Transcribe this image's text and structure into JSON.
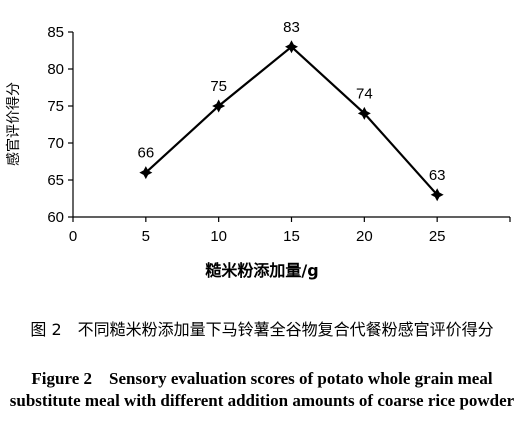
{
  "chart_data": {
    "type": "line",
    "x": [
      5,
      10,
      15,
      20,
      25
    ],
    "series": [
      {
        "values": [
          66,
          75,
          83,
          74,
          63
        ],
        "color": "#000000",
        "marker": "star"
      }
    ],
    "data_labels": [
      "66",
      "75",
      "83",
      "74",
      "63"
    ],
    "xlabel": "糙米粉添加量/g",
    "ylabel": "感官评价得分",
    "xlim": [
      0,
      30
    ],
    "ylim": [
      60,
      85
    ],
    "x_ticks": [
      "0",
      "5",
      "10",
      "15",
      "20",
      "25"
    ],
    "y_ticks": [
      "60",
      "65",
      "70",
      "75",
      "80",
      "85"
    ],
    "grid": false,
    "legend": "none"
  },
  "caption_cn": "图 2　不同糙米粉添加量下马铃薯全谷物复合代餐粉感官评价得分",
  "caption_en": "Figure 2　Sensory evaluation scores of potato whole grain meal substitute meal with different addition amounts of coarse rice powder"
}
